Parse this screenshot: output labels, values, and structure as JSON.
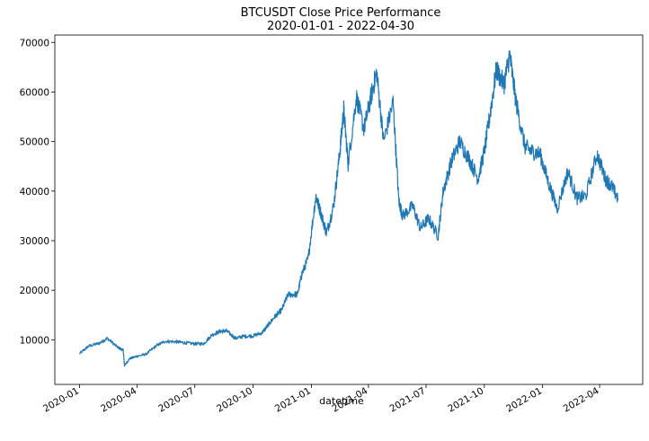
{
  "chart_data": {
    "type": "line",
    "title": "BTCUSDT Close Price Performance",
    "subtitle": "2020-01-01 - 2022-04-30",
    "xlabel": "datetime",
    "ylabel": "",
    "xlim": [
      "2019-11-23",
      "2022-06-08"
    ],
    "ylim": [
      1000,
      71500
    ],
    "grid": false,
    "legend": "none",
    "line_color": "#1f77b4",
    "xticks": [
      {
        "date": "2020-01-01",
        "label": "2020-01"
      },
      {
        "date": "2020-04-01",
        "label": "2020-04"
      },
      {
        "date": "2020-07-01",
        "label": "2020-07"
      },
      {
        "date": "2020-10-01",
        "label": "2020-10"
      },
      {
        "date": "2021-01-01",
        "label": "2021-01"
      },
      {
        "date": "2021-04-01",
        "label": "2021-04"
      },
      {
        "date": "2021-07-01",
        "label": "2021-07"
      },
      {
        "date": "2021-10-01",
        "label": "2021-10"
      },
      {
        "date": "2022-01-01",
        "label": "2022-01"
      },
      {
        "date": "2022-04-01",
        "label": "2022-04"
      }
    ],
    "yticks": [
      {
        "value": 10000,
        "label": "10000"
      },
      {
        "value": 20000,
        "label": "20000"
      },
      {
        "value": 30000,
        "label": "30000"
      },
      {
        "value": 40000,
        "label": "40000"
      },
      {
        "value": 50000,
        "label": "50000"
      },
      {
        "value": 60000,
        "label": "60000"
      },
      {
        "value": 70000,
        "label": "70000"
      }
    ],
    "series": [
      {
        "x": [
          "2020-01-01",
          "2020-01-15",
          "2020-02-01",
          "2020-02-14",
          "2020-03-01",
          "2020-03-10",
          "2020-03-12",
          "2020-03-20",
          "2020-04-01",
          "2020-04-15",
          "2020-05-01",
          "2020-05-15",
          "2020-06-01",
          "2020-06-15",
          "2020-07-01",
          "2020-07-15",
          "2020-07-28",
          "2020-08-10",
          "2020-08-20",
          "2020-09-03",
          "2020-09-15",
          "2020-10-01",
          "2020-10-15",
          "2020-10-25",
          "2020-11-05",
          "2020-11-15",
          "2020-11-25",
          "2020-12-10",
          "2020-12-17",
          "2020-12-27",
          "2021-01-08",
          "2021-01-15",
          "2021-01-25",
          "2021-02-05",
          "2021-02-15",
          "2021-02-21",
          "2021-02-28",
          "2021-03-13",
          "2021-03-25",
          "2021-04-05",
          "2021-04-14",
          "2021-04-25",
          "2021-05-10",
          "2021-05-19",
          "2021-05-25",
          "2021-06-10",
          "2021-06-22",
          "2021-07-05",
          "2021-07-20",
          "2021-07-28",
          "2021-08-10",
          "2021-08-23",
          "2021-09-07",
          "2021-09-21",
          "2021-10-01",
          "2021-10-10",
          "2021-10-20",
          "2021-11-01",
          "2021-11-10",
          "2021-11-20",
          "2021-12-04",
          "2021-12-15",
          "2021-12-28",
          "2022-01-10",
          "2022-01-24",
          "2022-02-10",
          "2022-02-24",
          "2022-03-10",
          "2022-03-28",
          "2022-04-10",
          "2022-04-20",
          "2022-04-30"
        ],
        "values": [
          7200,
          8700,
          9300,
          10300,
          8500,
          7900,
          4800,
          6200,
          6700,
          7100,
          8800,
          9700,
          9600,
          9400,
          9200,
          9200,
          11000,
          11700,
          11800,
          10300,
          10700,
          10800,
          11400,
          13000,
          14800,
          16000,
          19100,
          19200,
          23300,
          26500,
          39000,
          36000,
          31500,
          37000,
          48000,
          56500,
          45500,
          59000,
          52500,
          59000,
          64000,
          50000,
          58000,
          38000,
          35000,
          37000,
          32500,
          34500,
          31000,
          40000,
          46000,
          50000,
          46500,
          42500,
          48000,
          55500,
          64500,
          61500,
          67500,
          58000,
          49000,
          48000,
          47500,
          41800,
          36500,
          44000,
          38500,
          39000,
          47500,
          42500,
          41000,
          38500
        ]
      }
    ]
  }
}
